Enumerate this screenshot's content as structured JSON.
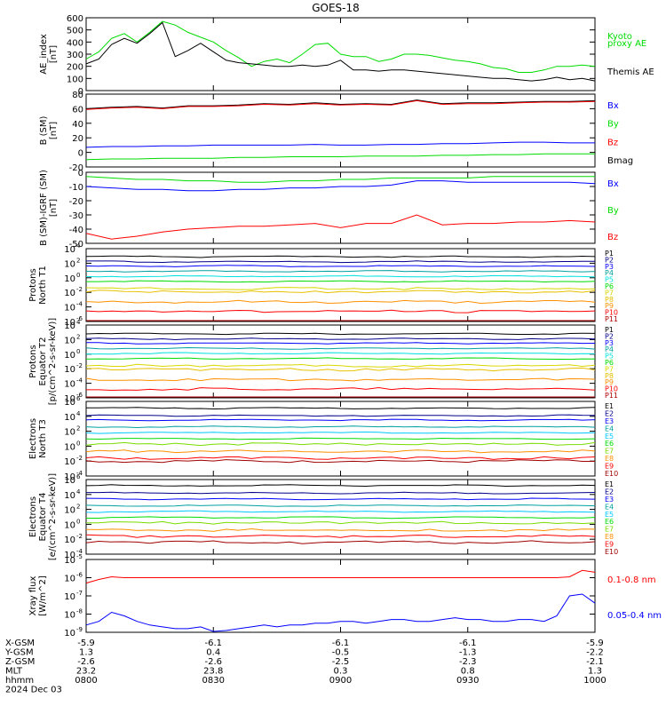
{
  "title": "GOES-18",
  "colors": {
    "black": "#000000",
    "navy": "#00008b",
    "blue": "#0000ff",
    "teal": "#00a0a0",
    "cyan": "#00c8ff",
    "aqua": "#00e0e0",
    "green": "#00dc00",
    "lime": "#78dc00",
    "yellow": "#d8d800",
    "gold": "#e8c000",
    "orange": "#ff9000",
    "red": "#ff0000",
    "darkred": "#b00000",
    "brown": "#a00000"
  },
  "chart_data": [
    {
      "type": "line",
      "name": "ae",
      "ylabel": "AE_index\n[nT]",
      "ylim": [
        0,
        600
      ],
      "yticks": [
        "0",
        "100",
        "200",
        "300",
        "400",
        "500",
        "600"
      ],
      "legend": [
        {
          "text": "Kyoto",
          "color": "#00dc00"
        },
        {
          "text": "proxy AE",
          "color": "#00dc00"
        },
        {
          "text": "Themis AE",
          "color": "#000000"
        }
      ],
      "x": [
        0,
        0.05,
        0.1,
        0.15,
        0.2,
        0.25,
        0.3,
        0.35,
        0.4,
        0.45,
        0.5,
        0.55,
        0.6,
        0.65,
        0.7,
        0.75,
        0.8,
        0.85,
        0.9,
        0.95,
        1.0,
        1.05,
        1.1,
        1.15,
        1.2,
        1.25,
        1.3,
        1.35,
        1.4,
        1.45,
        1.5,
        1.55,
        1.6,
        1.65,
        1.7,
        1.75,
        1.8,
        1.85,
        1.9,
        1.95,
        2.0
      ],
      "series": [
        {
          "name": "Kyoto proxy AE",
          "color": "#00dc00",
          "values": [
            260,
            320,
            430,
            470,
            400,
            480,
            570,
            540,
            480,
            440,
            400,
            330,
            270,
            200,
            240,
            260,
            230,
            300,
            380,
            390,
            300,
            280,
            280,
            240,
            260,
            300,
            300,
            290,
            270,
            250,
            240,
            220,
            190,
            180,
            150,
            150,
            170,
            200,
            200,
            210,
            200
          ]
        },
        {
          "name": "Themis AE",
          "color": "#000000",
          "values": [
            220,
            260,
            380,
            430,
            390,
            470,
            560,
            280,
            330,
            390,
            320,
            250,
            230,
            220,
            210,
            200,
            200,
            210,
            200,
            210,
            250,
            170,
            170,
            160,
            170,
            170,
            160,
            150,
            140,
            130,
            120,
            110,
            100,
            100,
            90,
            80,
            90,
            110,
            90,
            100,
            80
          ]
        }
      ]
    },
    {
      "type": "line",
      "name": "bsm",
      "ylabel": "B (SM)\n[nT]",
      "ylim": [
        -20,
        80
      ],
      "yticks": [
        "-20",
        "0",
        "20",
        "40",
        "60",
        "80"
      ],
      "legend": [
        {
          "text": "Bx",
          "color": "#0000ff"
        },
        {
          "text": "By",
          "color": "#00dc00"
        },
        {
          "text": "Bz",
          "color": "#ff0000"
        },
        {
          "text": "Bmag",
          "color": "#000000"
        }
      ],
      "x": [
        0,
        0.1,
        0.2,
        0.3,
        0.4,
        0.5,
        0.6,
        0.7,
        0.8,
        0.9,
        1.0,
        1.1,
        1.2,
        1.3,
        1.4,
        1.5,
        1.6,
        1.7,
        1.8,
        1.9,
        2.0
      ],
      "series": [
        {
          "name": "Bmag",
          "color": "#000000",
          "values": [
            60,
            62,
            63,
            61,
            64,
            64,
            65,
            67,
            66,
            68,
            66,
            67,
            66,
            72,
            67,
            68,
            68,
            69,
            70,
            70,
            71
          ]
        },
        {
          "name": "Bz",
          "color": "#ff0000",
          "values": [
            59,
            61,
            62,
            60,
            63,
            63,
            64,
            66,
            65,
            67,
            65,
            66,
            65,
            71,
            66,
            67,
            67,
            68,
            69,
            69,
            70
          ]
        },
        {
          "name": "Bx",
          "color": "#0000ff",
          "values": [
            7,
            8,
            8,
            9,
            9,
            10,
            10,
            10,
            10,
            11,
            10,
            10,
            11,
            11,
            12,
            12,
            13,
            14,
            14,
            13,
            13
          ]
        },
        {
          "name": "By",
          "color": "#00dc00",
          "values": [
            -10,
            -9,
            -9,
            -8,
            -8,
            -8,
            -7,
            -7,
            -6,
            -6,
            -6,
            -5,
            -5,
            -5,
            -4,
            -4,
            -3,
            -3,
            -2,
            -2,
            -2
          ]
        }
      ]
    },
    {
      "type": "line",
      "name": "bigrf",
      "ylabel": "B (SM)-IGRF (SM)\n[nT]",
      "ylim": [
        -50,
        0
      ],
      "yticks": [
        "-50",
        "-40",
        "-30",
        "-20",
        "-10",
        "0"
      ],
      "legend": [
        {
          "text": "Bx",
          "color": "#0000ff"
        },
        {
          "text": "By",
          "color": "#00dc00"
        },
        {
          "text": "Bz",
          "color": "#ff0000"
        }
      ],
      "x": [
        0,
        0.1,
        0.2,
        0.3,
        0.4,
        0.5,
        0.6,
        0.7,
        0.8,
        0.9,
        1.0,
        1.1,
        1.2,
        1.3,
        1.4,
        1.5,
        1.6,
        1.7,
        1.8,
        1.9,
        2.0
      ],
      "series": [
        {
          "name": "By",
          "color": "#00dc00",
          "values": [
            -3,
            -4,
            -5,
            -5,
            -6,
            -6,
            -7,
            -7,
            -6,
            -6,
            -5,
            -5,
            -4,
            -4,
            -4,
            -4,
            -3,
            -3,
            -3,
            -3,
            -3
          ]
        },
        {
          "name": "Bx",
          "color": "#0000ff",
          "values": [
            -10,
            -11,
            -12,
            -12,
            -13,
            -13,
            -12,
            -12,
            -11,
            -11,
            -10,
            -10,
            -9,
            -6,
            -6,
            -7,
            -7,
            -7,
            -7,
            -7,
            -8
          ]
        },
        {
          "name": "Bz",
          "color": "#ff0000",
          "values": [
            -43,
            -47,
            -45,
            -42,
            -40,
            -39,
            -38,
            -38,
            -37,
            -36,
            -39,
            -36,
            -36,
            -30,
            -37,
            -36,
            -36,
            -35,
            -35,
            -34,
            -35
          ]
        }
      ]
    },
    {
      "type": "line",
      "name": "protons_t1",
      "ylabel": "Protons\nNorth T1",
      "yscale": "log",
      "ylim": [
        -6,
        4
      ],
      "yticks": [
        "10^-6",
        "10^-4",
        "10^-2",
        "10^0",
        "10^2",
        "10^4"
      ],
      "legend": [
        {
          "text": "P1",
          "color": "#000000"
        },
        {
          "text": "P2",
          "color": "#00008b"
        },
        {
          "text": "P3",
          "color": "#0000ff"
        },
        {
          "text": "P4",
          "color": "#00a0a0"
        },
        {
          "text": "P5",
          "color": "#00e0e0"
        },
        {
          "text": "P6",
          "color": "#00dc00"
        },
        {
          "text": "P7",
          "color": "#d8d800"
        },
        {
          "text": "P8",
          "color": "#e8c000"
        },
        {
          "text": "P9",
          "color": "#ff9000"
        },
        {
          "text": "P10",
          "color": "#ff0000"
        },
        {
          "text": "P11",
          "color": "#b00000"
        }
      ],
      "levels": [
        2.9,
        2.2,
        1.6,
        0.9,
        0.2,
        -0.5,
        -1.5,
        -1.9,
        -3.3,
        -4.6,
        -6.5
      ]
    },
    {
      "type": "line",
      "name": "protons_t2",
      "ylabel": "Protons\nEquator T2\n[p/(cm^2-s-sr-keV)]",
      "yscale": "log",
      "ylim": [
        -6,
        4
      ],
      "yticks": [
        "10^-6",
        "10^-4",
        "10^-2",
        "10^0",
        "10^2",
        "10^4"
      ],
      "legend": [
        {
          "text": "P1",
          "color": "#000000"
        },
        {
          "text": "P2",
          "color": "#00008b"
        },
        {
          "text": "P3",
          "color": "#0000ff"
        },
        {
          "text": "P4",
          "color": "#00a0a0"
        },
        {
          "text": "P5",
          "color": "#00e0e0"
        },
        {
          "text": "P6",
          "color": "#00dc00"
        },
        {
          "text": "P7",
          "color": "#d8d800"
        },
        {
          "text": "P8",
          "color": "#e8c000"
        },
        {
          "text": "P9",
          "color": "#ff9000"
        },
        {
          "text": "P10",
          "color": "#ff0000"
        },
        {
          "text": "P11",
          "color": "#b00000"
        }
      ],
      "levels": [
        2.8,
        2.1,
        1.5,
        0.8,
        0.1,
        -0.6,
        -1.6,
        -2.1,
        -3.5,
        -4.8,
        -6.5
      ]
    },
    {
      "type": "line",
      "name": "electrons_t3",
      "ylabel": "Electrons\nNorth T3",
      "yscale": "log",
      "ylim": [
        -4,
        6
      ],
      "yticks": [
        "10^-4",
        "10^-2",
        "10^0",
        "10^2",
        "10^4",
        "10^6"
      ],
      "legend": [
        {
          "text": "E1",
          "color": "#000000"
        },
        {
          "text": "E2",
          "color": "#00008b"
        },
        {
          "text": "E3",
          "color": "#0000ff"
        },
        {
          "text": "E4",
          "color": "#00a0a0"
        },
        {
          "text": "E5",
          "color": "#00c8ff"
        },
        {
          "text": "E6",
          "color": "#00dc00"
        },
        {
          "text": "E7",
          "color": "#78dc00"
        },
        {
          "text": "E8",
          "color": "#ff9000"
        },
        {
          "text": "E9",
          "color": "#ff0000"
        },
        {
          "text": "E10",
          "color": "#a00000"
        }
      ],
      "levels": [
        5.1,
        4.1,
        3.5,
        2.6,
        1.8,
        1.0,
        0.3,
        -0.7,
        -1.6,
        -2.0
      ]
    },
    {
      "type": "line",
      "name": "electrons_t4",
      "ylabel": "Electrons\nEquator T4\n[e/(cm^2-s-sr-keV)]",
      "yscale": "log",
      "ylim": [
        -4,
        6
      ],
      "yticks": [
        "10^-4",
        "10^-2",
        "10^0",
        "10^2",
        "10^4",
        "10^6"
      ],
      "legend": [
        {
          "text": "E1",
          "color": "#000000"
        },
        {
          "text": "E2",
          "color": "#00008b"
        },
        {
          "text": "E3",
          "color": "#0000ff"
        },
        {
          "text": "E4",
          "color": "#00a0a0"
        },
        {
          "text": "E5",
          "color": "#00c8ff"
        },
        {
          "text": "E6",
          "color": "#00dc00"
        },
        {
          "text": "E7",
          "color": "#78dc00"
        },
        {
          "text": "E8",
          "color": "#ff9000"
        },
        {
          "text": "E9",
          "color": "#ff0000"
        },
        {
          "text": "E10",
          "color": "#a00000"
        }
      ],
      "levels": [
        5.2,
        4.2,
        3.4,
        2.5,
        1.7,
        0.9,
        0.2,
        -0.8,
        -1.6,
        -2.4
      ]
    },
    {
      "type": "line",
      "name": "xray",
      "ylabel": "Xray flux\n[W/m^2]",
      "yscale": "log",
      "ylim": [
        -9,
        -5
      ],
      "yticks": [
        "10^-9",
        "10^-8",
        "10^-7",
        "10^-6",
        "10^-5"
      ],
      "legend": [
        {
          "text": "0.1-0.8 nm",
          "color": "#ff0000"
        },
        {
          "text": "0.05-0.4 nm",
          "color": "#0000ff"
        }
      ],
      "x": [
        0,
        0.05,
        0.1,
        0.15,
        0.2,
        0.25,
        0.3,
        0.35,
        0.4,
        0.45,
        0.5,
        0.55,
        0.6,
        0.65,
        0.7,
        0.75,
        0.8,
        0.85,
        0.9,
        0.95,
        1.0,
        1.05,
        1.1,
        1.15,
        1.2,
        1.25,
        1.3,
        1.35,
        1.4,
        1.45,
        1.5,
        1.55,
        1.6,
        1.65,
        1.7,
        1.75,
        1.8,
        1.85,
        1.9,
        1.95,
        2.0
      ],
      "series": [
        {
          "name": "0.1-0.8 nm",
          "color": "#ff0000",
          "values": [
            -6.3,
            -6.1,
            -5.95,
            -6.0,
            -6.0,
            -6.0,
            -6.0,
            -6.0,
            -6.0,
            -6.0,
            -6.0,
            -6.0,
            -6.0,
            -6.0,
            -6.0,
            -6.0,
            -6.0,
            -6.0,
            -6.0,
            -6.0,
            -6.0,
            -6.0,
            -6.0,
            -6.0,
            -6.0,
            -6.0,
            -6.0,
            -6.0,
            -6.0,
            -6.0,
            -6.0,
            -6.0,
            -6.0,
            -6.0,
            -6.0,
            -6.0,
            -6.0,
            -6.0,
            -5.95,
            -5.6,
            -5.7
          ]
        },
        {
          "name": "0.05-0.4 nm",
          "color": "#0000ff",
          "values": [
            -8.6,
            -8.4,
            -7.9,
            -8.1,
            -8.4,
            -8.6,
            -8.7,
            -8.8,
            -8.8,
            -8.7,
            -9.0,
            -8.9,
            -8.8,
            -8.7,
            -8.6,
            -8.7,
            -8.6,
            -8.6,
            -8.5,
            -8.5,
            -8.4,
            -8.4,
            -8.5,
            -8.4,
            -8.3,
            -8.3,
            -8.4,
            -8.4,
            -8.3,
            -8.2,
            -8.3,
            -8.3,
            -8.4,
            -8.4,
            -8.3,
            -8.3,
            -8.4,
            -8.1,
            -7.0,
            -6.9,
            -7.4
          ]
        }
      ]
    }
  ],
  "footer": {
    "rows": [
      {
        "label": "X-GSM",
        "values": [
          "-5.9",
          "-6.1",
          "-6.1",
          "-6.1",
          "-5.9"
        ]
      },
      {
        "label": "Y-GSM",
        "values": [
          "1.3",
          "0.4",
          "-0.5",
          "-1.3",
          "-2.2"
        ]
      },
      {
        "label": "Z-GSM",
        "values": [
          "-2.6",
          "-2.6",
          "-2.5",
          "-2.3",
          "-2.1"
        ]
      },
      {
        "label": "MLT",
        "values": [
          "23.2",
          "23.8",
          "0.3",
          "0.8",
          "1.3"
        ]
      },
      {
        "label": "hhmm",
        "values": [
          "0800",
          "0830",
          "0900",
          "0930",
          "1000"
        ]
      }
    ],
    "date": "2024 Dec 03"
  }
}
